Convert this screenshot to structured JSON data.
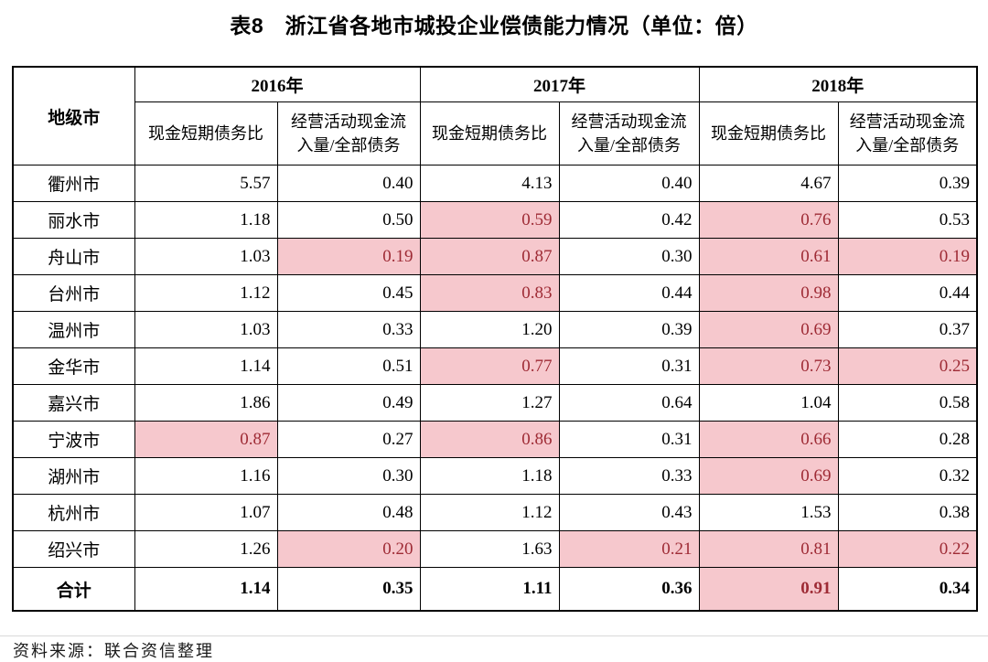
{
  "page": {
    "source_note": "资料来源：联合资信整理"
  },
  "colors": {
    "highlight_bg": "#f6c8cd",
    "highlight_text": "#9e2b35",
    "border": "#000000"
  },
  "chart_data": {
    "type": "table",
    "title": "表8　浙江省各地市城投企业偿债能力情况（单位：倍）",
    "corner_header": "地级市",
    "year_groups": [
      "2016年",
      "2017年",
      "2018年"
    ],
    "metric_labels": [
      "现金短期债务比",
      "经营活动现金流入量/全部债务"
    ],
    "rows": [
      {
        "city": "衢州市",
        "values": [
          "5.57",
          "0.40",
          "4.13",
          "0.40",
          "4.67",
          "0.39"
        ],
        "highlight": [
          false,
          false,
          false,
          false,
          false,
          false
        ],
        "is_total": false
      },
      {
        "city": "丽水市",
        "values": [
          "1.18",
          "0.50",
          "0.59",
          "0.42",
          "0.76",
          "0.53"
        ],
        "highlight": [
          false,
          false,
          true,
          false,
          true,
          false
        ],
        "is_total": false
      },
      {
        "city": "舟山市",
        "values": [
          "1.03",
          "0.19",
          "0.87",
          "0.30",
          "0.61",
          "0.19"
        ],
        "highlight": [
          false,
          true,
          true,
          false,
          true,
          true
        ],
        "is_total": false
      },
      {
        "city": "台州市",
        "values": [
          "1.12",
          "0.45",
          "0.83",
          "0.44",
          "0.98",
          "0.44"
        ],
        "highlight": [
          false,
          false,
          true,
          false,
          true,
          false
        ],
        "is_total": false
      },
      {
        "city": "温州市",
        "values": [
          "1.03",
          "0.33",
          "1.20",
          "0.39",
          "0.69",
          "0.37"
        ],
        "highlight": [
          false,
          false,
          false,
          false,
          true,
          false
        ],
        "is_total": false
      },
      {
        "city": "金华市",
        "values": [
          "1.14",
          "0.51",
          "0.77",
          "0.31",
          "0.73",
          "0.25"
        ],
        "highlight": [
          false,
          false,
          true,
          false,
          true,
          true
        ],
        "is_total": false
      },
      {
        "city": "嘉兴市",
        "values": [
          "1.86",
          "0.49",
          "1.27",
          "0.64",
          "1.04",
          "0.58"
        ],
        "highlight": [
          false,
          false,
          false,
          false,
          false,
          false
        ],
        "is_total": false
      },
      {
        "city": "宁波市",
        "values": [
          "0.87",
          "0.27",
          "0.86",
          "0.31",
          "0.66",
          "0.28"
        ],
        "highlight": [
          true,
          false,
          true,
          false,
          true,
          false
        ],
        "is_total": false
      },
      {
        "city": "湖州市",
        "values": [
          "1.16",
          "0.30",
          "1.18",
          "0.33",
          "0.69",
          "0.32"
        ],
        "highlight": [
          false,
          false,
          false,
          false,
          true,
          false
        ],
        "is_total": false
      },
      {
        "city": "杭州市",
        "values": [
          "1.07",
          "0.48",
          "1.12",
          "0.43",
          "1.53",
          "0.38"
        ],
        "highlight": [
          false,
          false,
          false,
          false,
          false,
          false
        ],
        "is_total": false
      },
      {
        "city": "绍兴市",
        "values": [
          "1.26",
          "0.20",
          "1.63",
          "0.21",
          "0.81",
          "0.22"
        ],
        "highlight": [
          false,
          true,
          false,
          true,
          true,
          true
        ],
        "is_total": false
      },
      {
        "city": "合计",
        "values": [
          "1.14",
          "0.35",
          "1.11",
          "0.36",
          "0.91",
          "0.34"
        ],
        "highlight": [
          false,
          false,
          false,
          false,
          true,
          false
        ],
        "is_total": true
      }
    ]
  }
}
